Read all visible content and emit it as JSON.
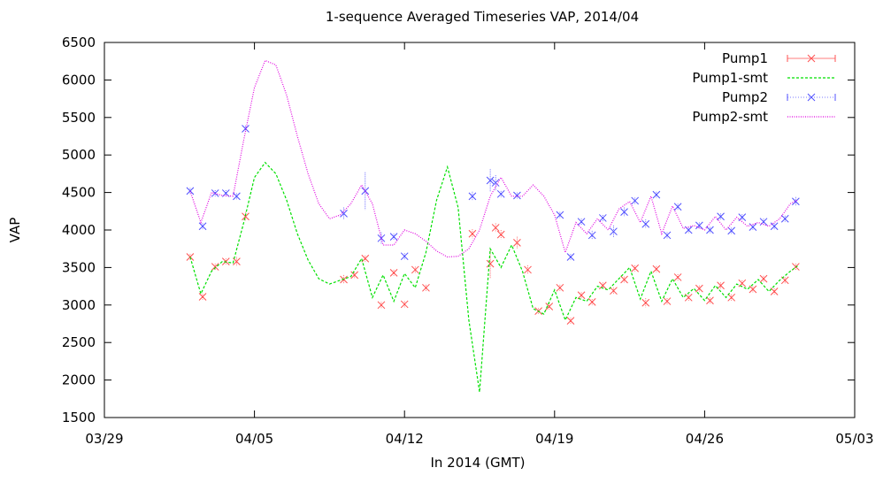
{
  "chart_data": {
    "type": "line",
    "title": "1-sequence Averaged Timeseries VAP, 2014/04",
    "xlabel": "In 2014 (GMT)",
    "ylabel": "VAP",
    "xlim": [
      "2014-03-29",
      "2014-05-03"
    ],
    "ylim": [
      1500,
      6500
    ],
    "x_ticks": [
      {
        "date": "2014-03-29",
        "label": "03/29"
      },
      {
        "date": "2014-04-05",
        "label": "04/05"
      },
      {
        "date": "2014-04-12",
        "label": "04/12"
      },
      {
        "date": "2014-04-19",
        "label": "04/19"
      },
      {
        "date": "2014-04-26",
        "label": "04/26"
      },
      {
        "date": "2014-05-03",
        "label": "05/03"
      }
    ],
    "y_ticks": [
      1500,
      2000,
      2500,
      3000,
      3500,
      4000,
      4500,
      5000,
      5500,
      6000,
      6500
    ],
    "grid": false,
    "legend_position": "top-right",
    "series": [
      {
        "name": "Pump1",
        "style": "points-errorbars",
        "color": "#ff5050",
        "x": [
          "2014-04-02",
          "2014-04-02 14:00",
          "2014-04-03 04:00",
          "2014-04-03 16:00",
          "2014-04-04 04:00",
          "2014-04-04 14:00",
          "2014-04-09 04:00",
          "2014-04-09 16:00",
          "2014-04-10 04:00",
          "2014-04-10 22:00",
          "2014-04-11 12:00",
          "2014-04-12 00:00",
          "2014-04-12 12:00",
          "2014-04-13 00:00",
          "2014-04-15 04:00",
          "2014-04-16 00:00",
          "2014-04-16 06:00",
          "2014-04-16 12:00",
          "2014-04-17 06:00",
          "2014-04-17 18:00",
          "2014-04-18 06:00",
          "2014-04-18 18:00",
          "2014-04-19 06:00",
          "2014-04-19 18:00",
          "2014-04-20 06:00",
          "2014-04-20 18:00",
          "2014-04-21 06:00",
          "2014-04-21 18:00",
          "2014-04-22 06:00",
          "2014-04-22 18:00",
          "2014-04-23 06:00",
          "2014-04-23 18:00",
          "2014-04-24 06:00",
          "2014-04-24 18:00",
          "2014-04-25 06:00",
          "2014-04-25 18:00",
          "2014-04-26 06:00",
          "2014-04-26 18:00",
          "2014-04-27 06:00",
          "2014-04-27 18:00",
          "2014-04-28 06:00",
          "2014-04-28 18:00",
          "2014-04-29 06:00",
          "2014-04-29 18:00",
          "2014-04-30 06:00"
        ],
        "y": [
          3640,
          3110,
          3510,
          3580,
          3580,
          4180,
          3340,
          3400,
          3620,
          3000,
          3430,
          3010,
          3470,
          3230,
          3950,
          3550,
          4030,
          3940,
          3830,
          3470,
          2920,
          2980,
          3230,
          2790,
          3130,
          3040,
          3260,
          3190,
          3340,
          3490,
          3030,
          3480,
          3050,
          3370,
          3100,
          3220,
          3060,
          3260,
          3100,
          3290,
          3210,
          3350,
          3180,
          3330,
          3510
        ],
        "error": [
          40,
          40,
          40,
          40,
          60,
          60,
          60,
          40,
          40,
          40,
          40,
          40,
          40,
          40,
          60,
          200,
          60,
          60,
          80,
          60,
          40,
          40,
          40,
          40,
          40,
          40,
          40,
          40,
          40,
          40,
          60,
          40,
          40,
          40,
          40,
          40,
          40,
          40,
          40,
          40,
          40,
          40,
          40,
          40,
          40
        ]
      },
      {
        "name": "Pump1-smt",
        "style": "dashed-line",
        "color": "#00e000",
        "x": [
          "2014-04-02",
          "2014-04-02 12:00",
          "2014-04-03 00:00",
          "2014-04-03 12:00",
          "2014-04-04 00:00",
          "2014-04-04 12:00",
          "2014-04-05 00:00",
          "2014-04-05 12:00",
          "2014-04-06 00:00",
          "2014-04-06 12:00",
          "2014-04-07 00:00",
          "2014-04-07 12:00",
          "2014-04-08 00:00",
          "2014-04-08 12:00",
          "2014-04-09 00:00",
          "2014-04-09 12:00",
          "2014-04-10 00:00",
          "2014-04-10 12:00",
          "2014-04-11 00:00",
          "2014-04-11 12:00",
          "2014-04-12 00:00",
          "2014-04-12 12:00",
          "2014-04-13 00:00",
          "2014-04-13 12:00",
          "2014-04-14 00:00",
          "2014-04-14 12:00",
          "2014-04-15 00:00",
          "2014-04-15 12:00",
          "2014-04-16 00:00",
          "2014-04-16 12:00",
          "2014-04-17 00:00",
          "2014-04-17 12:00",
          "2014-04-18 00:00",
          "2014-04-18 12:00",
          "2014-04-19 00:00",
          "2014-04-19 12:00",
          "2014-04-20 00:00",
          "2014-04-20 12:00",
          "2014-04-21 00:00",
          "2014-04-21 12:00",
          "2014-04-22 00:00",
          "2014-04-22 12:00",
          "2014-04-23 00:00",
          "2014-04-23 12:00",
          "2014-04-24 00:00",
          "2014-04-24 12:00",
          "2014-04-25 00:00",
          "2014-04-25 12:00",
          "2014-04-26 00:00",
          "2014-04-26 12:00",
          "2014-04-27 00:00",
          "2014-04-27 12:00",
          "2014-04-28 00:00",
          "2014-04-28 12:00",
          "2014-04-29 00:00",
          "2014-04-29 12:00",
          "2014-04-30 00:00",
          "2014-04-30 08:00"
        ],
        "y": [
          3640,
          3150,
          3450,
          3580,
          3560,
          4100,
          4700,
          4900,
          4750,
          4400,
          3950,
          3600,
          3350,
          3280,
          3330,
          3380,
          3620,
          3100,
          3400,
          3050,
          3420,
          3230,
          3700,
          4400,
          4840,
          4300,
          2800,
          1840,
          3750,
          3500,
          3800,
          3450,
          2950,
          2880,
          3200,
          2800,
          3100,
          3050,
          3250,
          3200,
          3350,
          3500,
          3080,
          3450,
          3050,
          3350,
          3100,
          3220,
          3060,
          3260,
          3100,
          3280,
          3210,
          3340,
          3180,
          3330,
          3450,
          3520
        ]
      },
      {
        "name": "Pump2",
        "style": "points-errorbars",
        "color": "#5050ff",
        "x": [
          "2014-04-02",
          "2014-04-02 14:00",
          "2014-04-03 04:00",
          "2014-04-03 16:00",
          "2014-04-04 04:00",
          "2014-04-04 14:00",
          "2014-04-09 04:00",
          "2014-04-10 04:00",
          "2014-04-10 22:00",
          "2014-04-11 12:00",
          "2014-04-12 00:00",
          "2014-04-15 04:00",
          "2014-04-16 00:00",
          "2014-04-16 06:00",
          "2014-04-16 12:00",
          "2014-04-17 06:00",
          "2014-04-19 06:00",
          "2014-04-19 18:00",
          "2014-04-20 06:00",
          "2014-04-20 18:00",
          "2014-04-21 06:00",
          "2014-04-21 18:00",
          "2014-04-22 06:00",
          "2014-04-22 18:00",
          "2014-04-23 06:00",
          "2014-04-23 18:00",
          "2014-04-24 06:00",
          "2014-04-24 18:00",
          "2014-04-25 06:00",
          "2014-04-25 18:00",
          "2014-04-26 06:00",
          "2014-04-26 18:00",
          "2014-04-27 06:00",
          "2014-04-27 18:00",
          "2014-04-28 06:00",
          "2014-04-28 18:00",
          "2014-04-29 06:00",
          "2014-04-29 18:00",
          "2014-04-30 06:00"
        ],
        "y": [
          4520,
          4050,
          4490,
          4490,
          4450,
          5350,
          4220,
          4520,
          3890,
          3910,
          3650,
          4450,
          4660,
          4630,
          4480,
          4460,
          4200,
          3640,
          4110,
          3930,
          4160,
          3980,
          4240,
          4390,
          4080,
          4470,
          3930,
          4310,
          4000,
          4060,
          4000,
          4180,
          3990,
          4170,
          4040,
          4110,
          4050,
          4150,
          4380
        ],
        "error": [
          40,
          40,
          40,
          40,
          40,
          40,
          80,
          250,
          80,
          40,
          40,
          60,
          150,
          100,
          40,
          40,
          40,
          40,
          40,
          60,
          40,
          80,
          60,
          40,
          60,
          40,
          40,
          40,
          40,
          40,
          40,
          40,
          40,
          40,
          40,
          40,
          40,
          40,
          60
        ]
      },
      {
        "name": "Pump2-smt",
        "style": "dotted-line",
        "color": "#e000e0",
        "x": [
          "2014-04-02",
          "2014-04-02 12:00",
          "2014-04-03 00:00",
          "2014-04-03 12:00",
          "2014-04-04 00:00",
          "2014-04-04 12:00",
          "2014-04-05 00:00",
          "2014-04-05 12:00",
          "2014-04-06 00:00",
          "2014-04-06 12:00",
          "2014-04-07 00:00",
          "2014-04-07 12:00",
          "2014-04-08 00:00",
          "2014-04-08 12:00",
          "2014-04-09 00:00",
          "2014-04-09 12:00",
          "2014-04-10 00:00",
          "2014-04-10 12:00",
          "2014-04-11 00:00",
          "2014-04-11 12:00",
          "2014-04-12 00:00",
          "2014-04-12 12:00",
          "2014-04-13 00:00",
          "2014-04-13 12:00",
          "2014-04-14 00:00",
          "2014-04-14 12:00",
          "2014-04-15 00:00",
          "2014-04-15 12:00",
          "2014-04-16 00:00",
          "2014-04-16 12:00",
          "2014-04-17 00:00",
          "2014-04-17 12:00",
          "2014-04-18 00:00",
          "2014-04-18 12:00",
          "2014-04-19 00:00",
          "2014-04-19 12:00",
          "2014-04-20 00:00",
          "2014-04-20 12:00",
          "2014-04-21 00:00",
          "2014-04-21 12:00",
          "2014-04-22 00:00",
          "2014-04-22 12:00",
          "2014-04-23 00:00",
          "2014-04-23 12:00",
          "2014-04-24 00:00",
          "2014-04-24 12:00",
          "2014-04-25 00:00",
          "2014-04-25 12:00",
          "2014-04-26 00:00",
          "2014-04-26 12:00",
          "2014-04-27 00:00",
          "2014-04-27 12:00",
          "2014-04-28 00:00",
          "2014-04-28 12:00",
          "2014-04-29 00:00",
          "2014-04-29 12:00",
          "2014-04-30 00:00",
          "2014-04-30 08:00"
        ],
        "y": [
          4520,
          4100,
          4500,
          4460,
          4450,
          5200,
          5900,
          6260,
          6200,
          5800,
          5250,
          4750,
          4350,
          4150,
          4200,
          4350,
          4600,
          4350,
          3800,
          3800,
          4000,
          3950,
          3850,
          3720,
          3640,
          3650,
          3750,
          4000,
          4450,
          4700,
          4450,
          4450,
          4600,
          4450,
          4200,
          3700,
          4100,
          3950,
          4150,
          4000,
          4280,
          4380,
          4100,
          4450,
          3950,
          4320,
          4020,
          4060,
          4000,
          4180,
          4000,
          4170,
          4050,
          4100,
          4050,
          4150,
          4350,
          4400
        ]
      }
    ]
  }
}
